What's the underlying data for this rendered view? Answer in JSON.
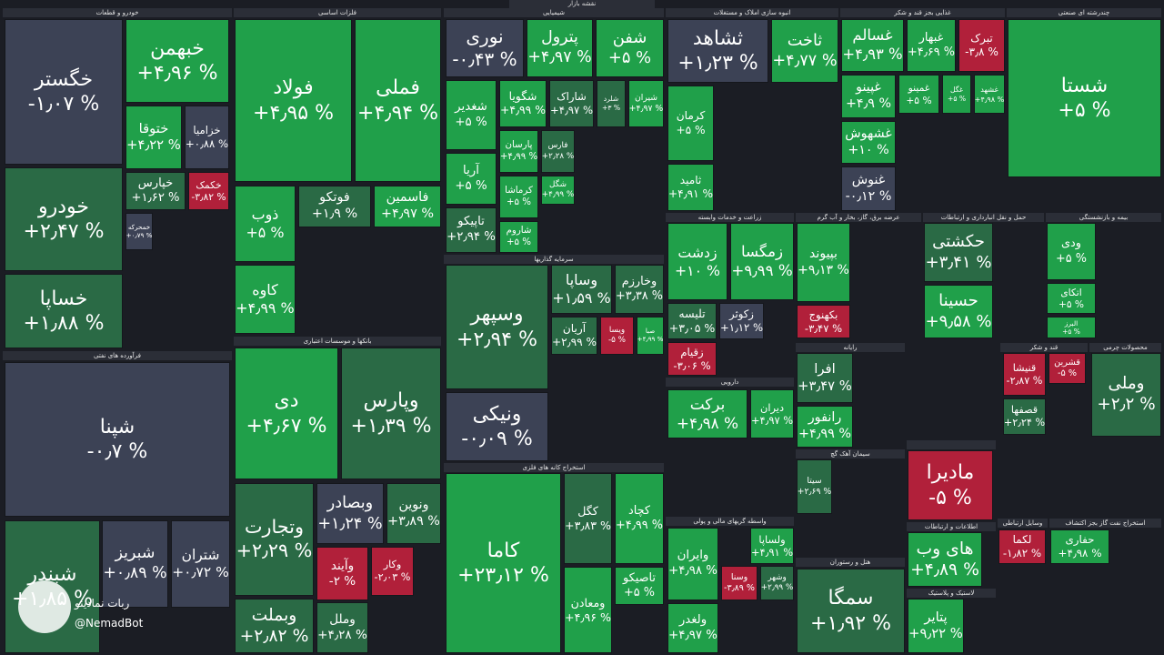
{
  "title": "نقشه بازار",
  "watermark": {
    "name": "ربات نمادینو",
    "handle": "@NemadBot"
  },
  "sectors": [
    {
      "name": "خودرو و قطعات",
      "tiles": [
        {
          "name": "خگستر",
          "change": "-۱٫۰۷ %"
        },
        {
          "name": "خبهمن",
          "change": "+۴٫۹۶ %"
        },
        {
          "name": "ختوقا",
          "change": "+۴٫۲۲ %"
        },
        {
          "name": "خزامیا",
          "change": "+۰٫۸۸ %"
        },
        {
          "name": "خودرو",
          "change": "+۲٫۴۷ %"
        },
        {
          "name": "خساپا",
          "change": "+۱٫۸۸ %"
        },
        {
          "name": "خپارس",
          "change": "+۱٫۶۲ %"
        },
        {
          "name": "خکمک",
          "change": "-۳٫۸۲ %"
        },
        {
          "name": "خمحرکه",
          "change": "+۰٫۷۹ %"
        }
      ]
    },
    {
      "name": "فرآورده های نفتی",
      "tiles": [
        {
          "name": "شپنا",
          "change": "-۰٫۷ %"
        },
        {
          "name": "شبندر",
          "change": "+۱٫۸۵ %"
        },
        {
          "name": "شبریز",
          "change": "+۰٫۸۹ %"
        },
        {
          "name": "شتران",
          "change": "+۰٫۷۲ %"
        }
      ]
    },
    {
      "name": "فلزات اساسی",
      "tiles": [
        {
          "name": "فولاد",
          "change": "+۴٫۹۵ %"
        },
        {
          "name": "فملی",
          "change": "+۴٫۹۴ %"
        },
        {
          "name": "ذوب",
          "change": "+۵ %"
        },
        {
          "name": "فوتکو",
          "change": "+۱٫۹ %"
        },
        {
          "name": "فاسمین",
          "change": "+۴٫۹۷ %"
        },
        {
          "name": "کاوه",
          "change": "+۴٫۹۹ %"
        }
      ]
    },
    {
      "name": "بانکها و موسسات اعتباری",
      "tiles": [
        {
          "name": "دی",
          "change": "+۴٫۶۷ %"
        },
        {
          "name": "وپارس",
          "change": "+۱٫۳۹ %"
        },
        {
          "name": "وتجارت",
          "change": "+۲٫۲۹ %"
        },
        {
          "name": "وبصادر",
          "change": "+۱٫۲۴ %"
        },
        {
          "name": "ونوین",
          "change": "+۳٫۸۹ %"
        },
        {
          "name": "وآیند",
          "change": "-۲ %"
        },
        {
          "name": "وکار",
          "change": "-۲٫۰۳ %"
        },
        {
          "name": "وبملت",
          "change": "+۲٫۸۲ %"
        },
        {
          "name": "وملل",
          "change": "+۴٫۲۸ %"
        }
      ]
    },
    {
      "name": "شیمیایی",
      "tiles": [
        {
          "name": "نوری",
          "change": "-۰٫۴۳ %"
        },
        {
          "name": "پترول",
          "change": "+۴٫۹۷ %"
        },
        {
          "name": "شفن",
          "change": "+۵ %"
        },
        {
          "name": "شغدیر",
          "change": "+۵ %"
        },
        {
          "name": "شگویا",
          "change": "+۴٫۹۹ %"
        },
        {
          "name": "شاراک",
          "change": "+۴٫۹۷ %"
        },
        {
          "name": "شلرد",
          "change": "+۳ %"
        },
        {
          "name": "شیران",
          "change": "+۴٫۹۷ %"
        },
        {
          "name": "آریا",
          "change": "+۵ %"
        },
        {
          "name": "تاپیکو",
          "change": "+۲٫۹۴ %"
        },
        {
          "name": "پارسان",
          "change": "+۴٫۹۹ %"
        },
        {
          "name": "کرماشا",
          "change": "+۵ %"
        },
        {
          "name": "شاروم",
          "change": "+۵ %"
        },
        {
          "name": "فارس",
          "change": "+۲٫۲۸ %"
        },
        {
          "name": "شگل",
          "change": "+۴٫۹۹ %"
        }
      ]
    },
    {
      "name": "سرمایه گذاریها",
      "tiles": [
        {
          "name": "وسپهر",
          "change": "+۲٫۹۴ %"
        },
        {
          "name": "ونیکی",
          "change": "-۰٫۰۹ %"
        },
        {
          "name": "وساپا",
          "change": "+۱٫۵۹ %"
        },
        {
          "name": "وخارزم",
          "change": "+۳٫۳۸ %"
        },
        {
          "name": "آریان",
          "change": "+۲٫۹۹ %"
        },
        {
          "name": "ویسا",
          "change": "-۵ %"
        },
        {
          "name": "صبا",
          "change": "+۴٫۹۹ %"
        }
      ]
    },
    {
      "name": "استخراج کانه های فلزی",
      "tiles": [
        {
          "name": "کاما",
          "change": "+۲۳٫۱۲ %"
        },
        {
          "name": "کگل",
          "change": "+۳٫۸۳ %"
        },
        {
          "name": "کچاد",
          "change": "+۴٫۹۹ %"
        },
        {
          "name": "تاصیکو",
          "change": "+۵ %"
        },
        {
          "name": "ومعادن",
          "change": "+۴٫۹۶ %"
        }
      ]
    },
    {
      "name": "انبوه سازی املاک و مستغلات",
      "tiles": [
        {
          "name": "ثشاهد",
          "change": "+۱٫۲۳ %"
        },
        {
          "name": "ثاخت",
          "change": "+۴٫۷۷ %"
        },
        {
          "name": "کرمان",
          "change": "+۵ %"
        },
        {
          "name": "ثامید",
          "change": "+۴٫۹۱ %"
        }
      ]
    },
    {
      "name": "غذایی بجز قند و شکر",
      "tiles": [
        {
          "name": "غسالم",
          "change": "+۴٫۹۳ %"
        },
        {
          "name": "غبهار",
          "change": "+۴٫۶۹ %"
        },
        {
          "name": "تبرک",
          "change": "-۳٫۸ %"
        },
        {
          "name": "غپینو",
          "change": "+۴٫۹ %"
        },
        {
          "name": "غشهوش",
          "change": "+۱۰ %"
        },
        {
          "name": "غنوش",
          "change": "-۰٫۱۲ %"
        },
        {
          "name": "غمینو",
          "change": "+۵ %"
        },
        {
          "name": "غگل",
          "change": "+۵ %"
        },
        {
          "name": "غشهد",
          "change": "+۴٫۹۸ %"
        }
      ]
    },
    {
      "name": "چندرشته ای صنعتی",
      "tiles": [
        {
          "name": "شستا",
          "change": "+۵ %"
        }
      ]
    },
    {
      "name": "زراعت و خدمات وابسته",
      "tiles": [
        {
          "name": "زدشت",
          "change": "+۱۰ %"
        },
        {
          "name": "زمگسا",
          "change": "+۹٫۹۹ %"
        },
        {
          "name": "تلیسه",
          "change": "+۳٫۰۵ %"
        },
        {
          "name": "زکوثر",
          "change": "+۱٫۱۲ %"
        },
        {
          "name": "زقیام",
          "change": "-۳٫۰۶ %"
        }
      ]
    },
    {
      "name": "عرضه برق، گاز، بخار و آب گرم",
      "tiles": [
        {
          "name": "بپیوند",
          "change": "+۹٫۱۳ %"
        },
        {
          "name": "بکهنوج",
          "change": "-۳٫۴۷ %"
        }
      ]
    },
    {
      "name": "حمل و نقل انبارداری و ارتباطات",
      "tiles": [
        {
          "name": "حکشتی",
          "change": "+۳٫۴۱ %"
        },
        {
          "name": "حسینا",
          "change": "+۹٫۵۸ %"
        }
      ]
    },
    {
      "name": "بیمه و بازنشستگی",
      "tiles": [
        {
          "name": "ودی",
          "change": "+۵ %"
        },
        {
          "name": "اتکای",
          "change": "+۵ %"
        },
        {
          "name": "البرز",
          "change": "+۵ %"
        }
      ]
    },
    {
      "name": "رایانه",
      "tiles": [
        {
          "name": "افرا",
          "change": "+۳٫۴۷ %"
        },
        {
          "name": "رانفور",
          "change": "+۴٫۹۹ %"
        }
      ]
    },
    {
      "name": "دارویی",
      "tiles": [
        {
          "name": "برکت",
          "change": "+۴٫۹۸ %"
        },
        {
          "name": "دیران",
          "change": "+۴٫۹۷ %"
        }
      ]
    },
    {
      "name": "قند و شکر",
      "tiles": [
        {
          "name": "قنیشا",
          "change": "-۲٫۸۷ %"
        },
        {
          "name": "قشرین",
          "change": "-۵ %"
        },
        {
          "name": "قصفها",
          "change": "+۲٫۲۴ %"
        }
      ]
    },
    {
      "name": "محصولات چرمی",
      "tiles": [
        {
          "name": "وملی",
          "change": "+۲٫۲ %"
        }
      ]
    },
    {
      "name": "سیمان آهک گچ",
      "tiles": [
        {
          "name": "سیتا",
          "change": "+۲٫۶۹ %"
        }
      ]
    },
    {
      "tiles": [
        {
          "name": "مادیرا",
          "change": "-۵ %"
        }
      ]
    },
    {
      "name": "اطلاعات و ارتباطات",
      "tiles": [
        {
          "name": "های وب",
          "change": "+۴٫۸۹ %"
        }
      ]
    },
    {
      "name": "لاستیک و پلاستیک",
      "tiles": [
        {
          "name": "پتایر",
          "change": "+۹٫۲۲ %"
        }
      ]
    },
    {
      "name": "واسطه گریهای مالی و پولی",
      "tiles": [
        {
          "name": "وایران",
          "change": "+۴٫۹۸ %"
        },
        {
          "name": "ولساپا",
          "change": "+۴٫۹۱ %"
        },
        {
          "name": "وسنا",
          "change": "-۳٫۸۹ %"
        },
        {
          "name": "وشهر",
          "change": "+۲٫۹۹ %"
        },
        {
          "name": "ولغدر",
          "change": "+۴٫۹۷ %"
        }
      ]
    },
    {
      "name": "هتل و رستوران",
      "tiles": [
        {
          "name": "سمگا",
          "change": "+۱٫۹۲ %"
        }
      ]
    },
    {
      "name": "وسایل ارتباطی",
      "tiles": [
        {
          "name": "لکما",
          "change": "-۱٫۸۲ %"
        }
      ]
    },
    {
      "name": "استخراج نفت گاز بجز اکتشاف",
      "tiles": [
        {
          "name": "حفاری",
          "change": "+۴٫۹۸ %"
        }
      ]
    }
  ]
}
